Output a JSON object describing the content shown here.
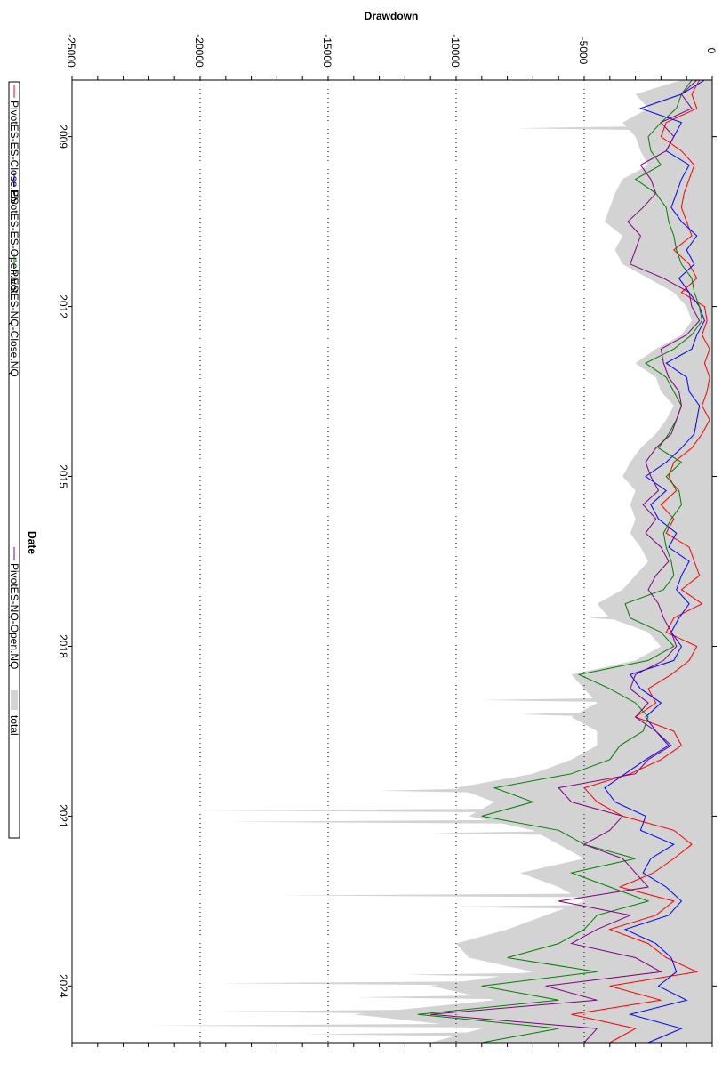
{
  "chart_data": {
    "type": "line",
    "title": "Drawdown",
    "xlabel": "Date",
    "ylabel": "Drawdown",
    "orientation": "rotated 90 degrees clockwise",
    "xlim": [
      2008,
      2025
    ],
    "ylim": [
      -25000,
      0
    ],
    "grid": "dotted at y ticks",
    "legend_position": "left",
    "x_tick_labels": [
      "2009",
      "2012",
      "2015",
      "2018",
      "2021",
      "2024"
    ],
    "x_ticks": [
      2009,
      2012,
      2015,
      2018,
      2021,
      2024
    ],
    "y_tick_labels": [
      "-25000",
      "-20000",
      "-15000",
      "-10000",
      "-5000",
      "0"
    ],
    "y_ticks": [
      -25000,
      -20000,
      -15000,
      -10000,
      -5000,
      0
    ],
    "x_start": 2008,
    "x_step": 0.25,
    "series": [
      {
        "name": "PivotES-ES-Close.ES",
        "color": "#ff0000",
        "values": [
          -500,
          -800,
          -600,
          -1800,
          -2000,
          -1200,
          -700,
          -900,
          -1100,
          -1200,
          -1000,
          -800,
          -1500,
          -900,
          -600,
          -1200,
          -300,
          -200,
          -400,
          -100,
          -300,
          -100,
          -200,
          -400,
          -100,
          -400,
          -800,
          -1500,
          -1700,
          -1400,
          -2000,
          -1500,
          -1800,
          -900,
          -700,
          -500,
          -1200,
          -400,
          -1500,
          -1800,
          -600,
          -900,
          -1600,
          -2500,
          -2200,
          -3000,
          -1500,
          -1200,
          -2000,
          -3200,
          -5000,
          -4500,
          -3500,
          -1500,
          -800,
          -1500,
          -2300,
          -3600,
          -1500,
          -2200,
          -4000,
          -2500,
          -1800,
          -600,
          -4000,
          -2000,
          -5500,
          -3000,
          -4000
        ]
      },
      {
        "name": "PivotES-ES-Open.ES",
        "color": "#0000ff",
        "values": [
          -300,
          -1200,
          -2800,
          -1200,
          -1500,
          -1800,
          -900,
          -1200,
          -1400,
          -1600,
          -1200,
          -600,
          -1000,
          -700,
          -1300,
          -900,
          -500,
          -300,
          -600,
          -800,
          -1800,
          -1000,
          -900,
          -500,
          -600,
          -700,
          -1200,
          -1800,
          -2600,
          -1800,
          -2400,
          -2100,
          -1400,
          -1700,
          -900,
          -1200,
          -1400,
          -900,
          -1300,
          -1600,
          -1200,
          -1500,
          -3200,
          -2800,
          -2000,
          -2600,
          -2200,
          -1700,
          -2600,
          -3400,
          -4200,
          -3800,
          -2600,
          -2800,
          -1500,
          -2400,
          -2700,
          -1800,
          -1200,
          -1700,
          -3400,
          -2200,
          -1600,
          -1400,
          -2100,
          -1000,
          -3200,
          -1200,
          -2500
        ]
      },
      {
        "name": "PivotES-NQ-Close.NQ",
        "color": "#008000",
        "values": [
          -800,
          -1200,
          -1400,
          -2000,
          -2500,
          -2400,
          -2000,
          -3000,
          -2200,
          -1800,
          -1700,
          -1500,
          -1400,
          -1200,
          -800,
          -700,
          -500,
          -400,
          -800,
          -1500,
          -2600,
          -1800,
          -1500,
          -1200,
          -1400,
          -1700,
          -2100,
          -1200,
          -1800,
          -1300,
          -1200,
          -1600,
          -1900,
          -1800,
          -1600,
          -1500,
          -1900,
          -3400,
          -3200,
          -2000,
          -1500,
          -2500,
          -5200,
          -4000,
          -3000,
          -2500,
          -2700,
          -3600,
          -4000,
          -5500,
          -8500,
          -7000,
          -9000,
          -6000,
          -5000,
          -3000,
          -5500,
          -4000,
          -2500,
          -4500,
          -5000,
          -6000,
          -8000,
          -4500,
          -9000,
          -6000,
          -11500,
          -6000,
          -9000
        ]
      },
      {
        "name": "PivotES-NQ-Open.NQ",
        "color": "#800080",
        "values": [
          -600,
          -1200,
          -800,
          -2000,
          -1500,
          -1800,
          -2800,
          -2400,
          -2200,
          -2700,
          -3300,
          -2800,
          -3000,
          -3200,
          -1900,
          -900,
          -800,
          -500,
          -1000,
          -2000,
          -1900,
          -1700,
          -1300,
          -1200,
          -1400,
          -1600,
          -2200,
          -2600,
          -2400,
          -2100,
          -2700,
          -2200,
          -2600,
          -2000,
          -1700,
          -2200,
          -2500,
          -2100,
          -1900,
          -1600,
          -1400,
          -1900,
          -3000,
          -3200,
          -2500,
          -3000,
          -2200,
          -1600,
          -2500,
          -3000,
          -6000,
          -5500,
          -3500,
          -4000,
          -5000,
          -3500,
          -3000,
          -2500,
          -6000,
          -3200,
          -4500,
          -5500,
          -3000,
          -2000,
          -6500,
          -4500,
          -11000,
          -4500,
          -5000
        ]
      }
    ],
    "area": {
      "name": "total",
      "color": "#d3d3d3",
      "values": [
        -1200,
        -3000,
        -2500,
        -3500,
        -3000,
        -2800,
        -2500,
        -3500,
        -3800,
        -4000,
        -4200,
        -3500,
        -3800,
        -3500,
        -2500,
        -1500,
        -1000,
        -800,
        -1200,
        -2200,
        -3000,
        -2200,
        -2000,
        -1500,
        -1800,
        -2200,
        -2800,
        -3200,
        -3500,
        -3000,
        -3200,
        -3000,
        -3200,
        -2800,
        -2500,
        -3000,
        -3500,
        -4500,
        -4000,
        -2500,
        -2000,
        -3000,
        -5500,
        -5000,
        -4500,
        -5500,
        -4500,
        -4500,
        -5500,
        -7000,
        -10000,
        -8500,
        -9500,
        -7000,
        -6000,
        -5000,
        -7500,
        -6000,
        -5000,
        -6500,
        -8000,
        -10000,
        -9500,
        -7000,
        -11000,
        -8500,
        -14000,
        -9000,
        -11000
      ],
      "spikes": [
        [
          2008.85,
          -7700
        ],
        [
          2017.5,
          -4800
        ],
        [
          2018.95,
          -9000
        ],
        [
          2019.2,
          -7500
        ],
        [
          2020.55,
          -13000
        ],
        [
          2020.9,
          -20000
        ],
        [
          2021.1,
          -19000
        ],
        [
          2021.3,
          -11000
        ],
        [
          2022.4,
          -17000
        ],
        [
          2022.6,
          -11000
        ],
        [
          2023.8,
          -12000
        ],
        [
          2023.95,
          -19500
        ],
        [
          2024.2,
          -14000
        ],
        [
          2024.45,
          -19500
        ],
        [
          2024.7,
          -22000
        ],
        [
          2024.85,
          -16000
        ]
      ]
    }
  }
}
